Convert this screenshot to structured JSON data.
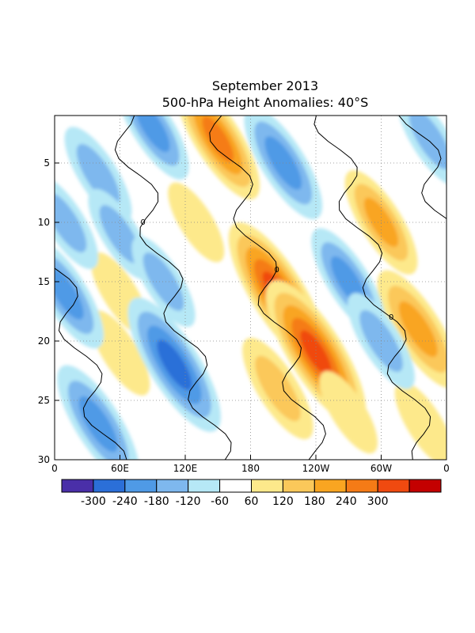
{
  "chart_data": {
    "type": "heatmap",
    "title": "September 2013",
    "subtitle": "500-hPa Height Anomalies: 40°S",
    "xlabel": "",
    "ylabel": "",
    "x_ticks": [
      "0",
      "60E",
      "120E",
      "180",
      "120W",
      "60W",
      "0"
    ],
    "x_range": [
      0,
      360
    ],
    "y_ticks": [
      "5",
      "10",
      "15",
      "20",
      "25",
      "30"
    ],
    "y_range": [
      1,
      30
    ],
    "y_axis_direction": "day increases downward",
    "grid": true,
    "grid_style": "dotted",
    "contour_labels": "0",
    "colorbar": {
      "placement": "bottom",
      "labels": [
        "-300",
        "-240",
        "-180",
        "-120",
        "-60",
        "60",
        "120",
        "180",
        "240",
        "300"
      ],
      "colors": [
        "#4a2fa8",
        "#2b6fd8",
        "#4f9ae6",
        "#7eb8ee",
        "#b6e8f6",
        "#ffffff",
        "#fde98b",
        "#fbc85a",
        "#f9a521",
        "#f57b16",
        "#f04a10",
        "#c40000"
      ]
    },
    "anomaly_features": [
      {
        "sign": "positive",
        "lon": 205,
        "day": 16,
        "amplitude": 320
      },
      {
        "sign": "positive",
        "lon": 240,
        "day": 21,
        "amplitude": 330
      },
      {
        "sign": "positive",
        "lon": 150,
        "day": 3,
        "amplitude": 240
      },
      {
        "sign": "positive",
        "lon": 205,
        "day": 24,
        "amplitude": 170
      },
      {
        "sign": "positive",
        "lon": 300,
        "day": 10,
        "amplitude": 180
      },
      {
        "sign": "positive",
        "lon": 334,
        "day": 19,
        "amplitude": 230
      },
      {
        "sign": "positive",
        "lon": 130,
        "day": 10,
        "amplitude": 90
      },
      {
        "sign": "positive",
        "lon": 60,
        "day": 16,
        "amplitude": 100
      },
      {
        "sign": "positive",
        "lon": 60,
        "day": 21,
        "amplitude": 110
      },
      {
        "sign": "positive",
        "lon": 340,
        "day": 27,
        "amplitude": 110
      },
      {
        "sign": "positive",
        "lon": 270,
        "day": 26,
        "amplitude": 100
      },
      {
        "sign": "negative",
        "lon": 110,
        "day": 22,
        "amplitude": 290
      },
      {
        "sign": "negative",
        "lon": 40,
        "day": 27,
        "amplitude": 230
      },
      {
        "sign": "negative",
        "lon": 210,
        "day": 5,
        "amplitude": 210
      },
      {
        "sign": "negative",
        "lon": 270,
        "day": 15,
        "amplitude": 190
      },
      {
        "sign": "negative",
        "lon": 10,
        "day": 16,
        "amplitude": 200
      },
      {
        "sign": "negative",
        "lon": 90,
        "day": 2,
        "amplitude": 180
      },
      {
        "sign": "negative",
        "lon": 40,
        "day": 6,
        "amplitude": 150
      },
      {
        "sign": "negative",
        "lon": 60,
        "day": 11,
        "amplitude": 130
      },
      {
        "sign": "negative",
        "lon": 300,
        "day": 20,
        "amplitude": 150
      },
      {
        "sign": "negative",
        "lon": 100,
        "day": 15,
        "amplitude": 130
      },
      {
        "sign": "negative",
        "lon": 10,
        "day": 10,
        "amplitude": 140
      },
      {
        "sign": "negative",
        "lon": 345,
        "day": 3,
        "amplitude": 140
      }
    ]
  }
}
